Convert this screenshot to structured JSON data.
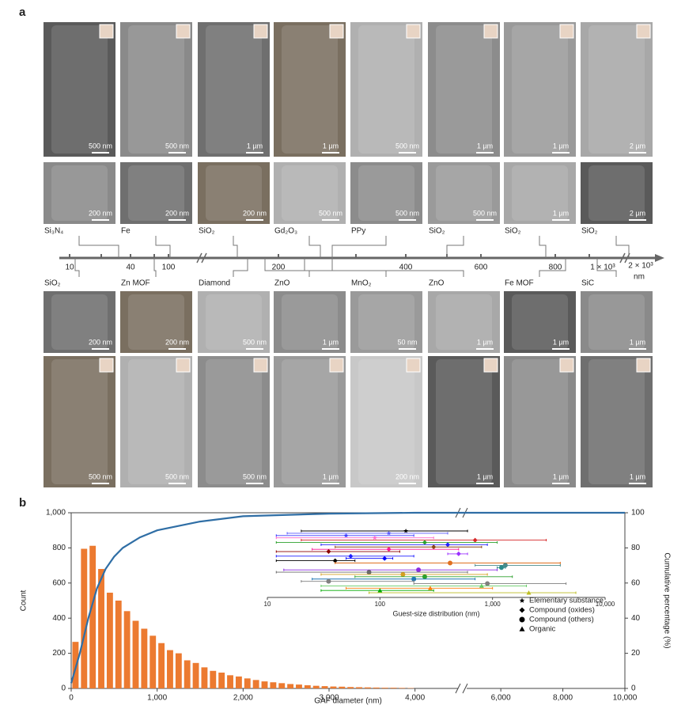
{
  "panel_labels": [
    "a",
    "b"
  ],
  "panel_a": {
    "row1_scale_bars": [
      "500 nm",
      "500 nm",
      "1 µm",
      "1 µm",
      "500 nm",
      "1 µm",
      "1 µm",
      "2 µm"
    ],
    "row2_scale_bars": [
      "200 nm",
      "200 nm",
      "200 nm",
      "500 nm",
      "500 nm",
      "500 nm",
      "1 µm",
      "2 µm"
    ],
    "row2_labels": [
      "Si₃N₄",
      "Fe",
      "SiO₂",
      "Gd₂O₃",
      "PPy",
      "SiO₂",
      "SiO₂",
      "SiO₂"
    ],
    "size_axis_labels": [
      "10",
      "40",
      "100",
      "200",
      "400",
      "600",
      "800",
      "1 × 10³",
      "2 × 10³",
      "nm"
    ],
    "row3_labels": [
      "SiO₂",
      "Zn MOF",
      "Diamond",
      "ZnO",
      "MnO₂",
      "ZnO",
      "Fe MOF",
      "SiC"
    ],
    "row3_scale_bars": [
      "200 nm",
      "200 nm",
      "500 nm",
      "1 µm",
      "50 nm",
      "1 µm",
      "1 µm",
      "1 µm"
    ],
    "row4_scale_bars": [
      "500 nm",
      "500 nm",
      "500 nm",
      "1 µm",
      "200 nm",
      "1 µm",
      "1 µm",
      "1 µm"
    ]
  },
  "chart_data": [
    {
      "type": "histogram",
      "xlabel": "GAF diameter (nm)",
      "ylabel": "Count",
      "y2label": "Cumulative percentage (%)",
      "bins": [
        0,
        100,
        200,
        300,
        400,
        500,
        600,
        700,
        800,
        900,
        1000,
        1100,
        1200,
        1300,
        1400,
        1500,
        1600,
        1700,
        1800,
        1900,
        2000,
        2100,
        2200,
        2300,
        2400,
        2500,
        2600,
        2700,
        2800,
        2900,
        3000,
        3100,
        3200,
        3300,
        3400,
        3500,
        3600,
        3700,
        3800,
        3900,
        4000
      ],
      "values": [
        265,
        795,
        812,
        680,
        545,
        500,
        440,
        385,
        340,
        300,
        258,
        218,
        200,
        160,
        145,
        120,
        100,
        90,
        75,
        68,
        57,
        48,
        40,
        35,
        30,
        25,
        22,
        18,
        15,
        13,
        11,
        10,
        8,
        7,
        6,
        5,
        4,
        4,
        3,
        2
      ],
      "color": "#ec7a30",
      "curve": {
        "color": "#2f6ea5",
        "axis": "y2",
        "x": [
          0,
          100,
          200,
          300,
          400,
          500,
          600,
          800,
          1000,
          1500,
          2000,
          3000,
          4000,
          6000,
          10000
        ],
        "values": [
          3,
          20,
          40,
          57,
          68,
          75,
          80,
          86,
          90,
          95,
          98,
          99.5,
          100,
          100,
          100
        ]
      },
      "xlim": [
        0,
        10000
      ],
      "xbreak": [
        4500,
        4900
      ],
      "xticks": [
        0,
        {
          "value": 1000,
          "label": "1,000"
        },
        {
          "value": 2000,
          "label": "2,000"
        },
        {
          "value": 3000,
          "label": "3,000"
        },
        {
          "value": 4000,
          "label": "4,000"
        },
        {
          "value": 6000,
          "label": "6,000"
        },
        {
          "value": 8000,
          "label": "8,000"
        },
        {
          "value": 10000,
          "label": "10,000"
        }
      ],
      "ylim": [
        0,
        1000
      ],
      "yticks": [
        0,
        200,
        400,
        600,
        800,
        {
          "value": 1000,
          "label": "1,000"
        }
      ],
      "y2lim": [
        0,
        100
      ],
      "y2ticks": [
        0,
        20,
        40,
        60,
        80,
        100
      ]
    },
    {
      "type": "errorbar",
      "xlabel": "Guest-size distribution (nm)",
      "xscale": "log",
      "xlim": [
        10,
        10000
      ],
      "xticks": [
        10,
        100,
        {
          "value": 1000,
          "label": "1,000"
        },
        {
          "value": 10000,
          "label": "10,000"
        }
      ],
      "legend": "right",
      "series": [
        {
          "name": "Elementary substance",
          "marker": "star",
          "color": "#000000",
          "values": [
            170,
            120,
            50,
            90
          ],
          "low": [
            20,
            15,
            12,
            12
          ],
          "high": [
            600,
            400,
            200,
            300
          ],
          "colors": [
            "#000000",
            "#5a5aff",
            "#3c3cff",
            "#ff66cc"
          ]
        },
        {
          "name": "Compound (oxides)",
          "marker": "diamond",
          "color": "#000000",
          "values": [
            700,
            250,
            400,
            300,
            120,
            35,
            500,
            55,
            110,
            40
          ],
          "low": [
            20,
            12,
            30,
            40,
            25,
            12,
            400,
            12,
            50,
            12
          ],
          "high": [
            3000,
            1100,
            900,
            800,
            500,
            150,
            600,
            200,
            130,
            60
          ],
          "colors": [
            "#d62728",
            "#2ca02c",
            "#1f1fff",
            "#8b4513",
            "#ff1493",
            "#8b0000",
            "#9b30ff",
            "#1f1fff",
            "#0000ff",
            "#000000"
          ]
        },
        {
          "name": "Compound (others)",
          "marker": "circle",
          "color": "#000000",
          "values": [
            420,
            1300,
            1200,
            220,
            80,
            160,
            250,
            200,
            35,
            900
          ],
          "low": [
            40,
            700,
            1100,
            14,
            12,
            30,
            60,
            25,
            20,
            200
          ],
          "high": [
            4000,
            4000,
            1300,
            1100,
            600,
            900,
            1500,
            700,
            200,
            4500
          ],
          "colors": [
            "#e07020",
            "#4a8a8a",
            "#2a8a8a",
            "#8a2be2",
            "#6a6a6a",
            "#d4a020",
            "#2ca02c",
            "#1f77b4",
            "#808080",
            "#7f7f7f"
          ]
        },
        {
          "name": "Organic",
          "marker": "triangle",
          "color": "#000000",
          "values": [
            800,
            280,
            100,
            2100
          ],
          "low": [
            30,
            50,
            30,
            80
          ],
          "high": [
            2000,
            1000,
            300,
            5500
          ],
          "colors": [
            "#66cc66",
            "#ff7f0e",
            "#00aa00",
            "#bcbd22"
          ]
        }
      ]
    }
  ]
}
